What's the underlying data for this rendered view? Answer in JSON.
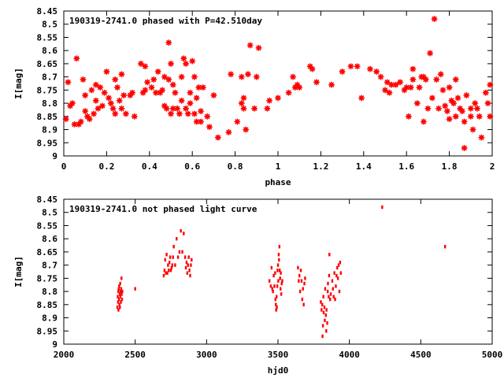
{
  "colors": {
    "points": "#ff0000",
    "axes": "#000000",
    "background": "#ffffff"
  },
  "chart_data": [
    {
      "type": "scatter",
      "title": "190319-2741.0 phased with P=42.510day",
      "xlabel": "phase",
      "ylabel": "I[mag]",
      "xlim": [
        0,
        2
      ],
      "ylim": [
        8.45,
        9.0
      ],
      "y_inverted": true,
      "grid": false,
      "marker": "asterisk",
      "xticks": [
        0,
        0.2,
        0.4,
        0.6,
        0.8,
        1,
        1.2,
        1.4,
        1.6,
        1.8,
        2
      ],
      "xtick_labels": [
        "0",
        "0.2",
        "0.4",
        "0.6",
        "0.8",
        "1",
        "1.2",
        "1.4",
        "1.6",
        "1.8",
        "2"
      ],
      "yticks": [
        8.45,
        8.5,
        8.55,
        8.6,
        8.65,
        8.7,
        8.75,
        8.8,
        8.85,
        8.9,
        8.95,
        9.0
      ],
      "ytick_labels": [
        "8.45",
        "8.5",
        "8.55",
        "8.6",
        "8.65",
        "8.7",
        "8.75",
        "8.8",
        "8.85",
        "8.9",
        "8.95",
        "9"
      ],
      "points": [
        [
          0.01,
          8.86
        ],
        [
          0.02,
          8.72
        ],
        [
          0.03,
          8.81
        ],
        [
          0.04,
          8.8
        ],
        [
          0.05,
          8.88
        ],
        [
          0.06,
          8.63
        ],
        [
          0.07,
          8.88
        ],
        [
          0.08,
          8.87
        ],
        [
          0.09,
          8.71
        ],
        [
          0.1,
          8.77
        ],
        [
          0.1,
          8.83
        ],
        [
          0.11,
          8.85
        ],
        [
          0.12,
          8.86
        ],
        [
          0.13,
          8.75
        ],
        [
          0.14,
          8.84
        ],
        [
          0.15,
          8.79
        ],
        [
          0.15,
          8.73
        ],
        [
          0.16,
          8.82
        ],
        [
          0.17,
          8.74
        ],
        [
          0.18,
          8.81
        ],
        [
          0.19,
          8.76
        ],
        [
          0.2,
          8.68
        ],
        [
          0.21,
          8.78
        ],
        [
          0.22,
          8.8
        ],
        [
          0.23,
          8.82
        ],
        [
          0.24,
          8.71
        ],
        [
          0.24,
          8.84
        ],
        [
          0.25,
          8.74
        ],
        [
          0.26,
          8.79
        ],
        [
          0.27,
          8.69
        ],
        [
          0.27,
          8.82
        ],
        [
          0.28,
          8.77
        ],
        [
          0.29,
          8.84
        ],
        [
          0.31,
          8.77
        ],
        [
          0.32,
          8.76
        ],
        [
          0.33,
          8.85
        ],
        [
          0.36,
          8.65
        ],
        [
          0.37,
          8.76
        ],
        [
          0.38,
          8.66
        ],
        [
          0.38,
          8.75
        ],
        [
          0.39,
          8.72
        ],
        [
          0.41,
          8.74
        ],
        [
          0.42,
          8.71
        ],
        [
          0.43,
          8.76
        ],
        [
          0.44,
          8.68
        ],
        [
          0.45,
          8.76
        ],
        [
          0.46,
          8.75
        ],
        [
          0.47,
          8.7
        ],
        [
          0.47,
          8.81
        ],
        [
          0.48,
          8.82
        ],
        [
          0.49,
          8.71
        ],
        [
          0.49,
          8.57
        ],
        [
          0.5,
          8.65
        ],
        [
          0.5,
          8.84
        ],
        [
          0.51,
          8.82
        ],
        [
          0.51,
          8.73
        ],
        [
          0.52,
          8.76
        ],
        [
          0.53,
          8.82
        ],
        [
          0.54,
          8.84
        ],
        [
          0.55,
          8.7
        ],
        [
          0.55,
          8.79
        ],
        [
          0.56,
          8.63
        ],
        [
          0.57,
          8.65
        ],
        [
          0.57,
          8.82
        ],
        [
          0.58,
          8.84
        ],
        [
          0.59,
          8.76
        ],
        [
          0.59,
          8.8
        ],
        [
          0.6,
          8.64
        ],
        [
          0.61,
          8.7
        ],
        [
          0.61,
          8.84
        ],
        [
          0.62,
          8.78
        ],
        [
          0.62,
          8.87
        ],
        [
          0.63,
          8.74
        ],
        [
          0.64,
          8.83
        ],
        [
          0.64,
          8.87
        ],
        [
          0.65,
          8.74
        ],
        [
          0.67,
          8.85
        ],
        [
          0.68,
          8.89
        ],
        [
          0.7,
          8.77
        ],
        [
          0.72,
          8.93
        ],
        [
          0.77,
          8.91
        ],
        [
          0.78,
          8.69
        ],
        [
          0.81,
          8.87
        ],
        [
          0.83,
          8.7
        ],
        [
          0.83,
          8.8
        ],
        [
          0.84,
          8.82
        ],
        [
          0.84,
          8.78
        ],
        [
          0.85,
          8.9
        ],
        [
          0.86,
          8.69
        ],
        [
          0.87,
          8.58
        ],
        [
          0.89,
          8.82
        ],
        [
          0.9,
          8.7
        ],
        [
          0.91,
          8.59
        ],
        [
          0.95,
          8.82
        ],
        [
          0.96,
          8.79
        ],
        [
          1.0,
          8.78
        ],
        [
          1.05,
          8.76
        ],
        [
          1.07,
          8.7
        ],
        [
          1.08,
          8.74
        ],
        [
          1.09,
          8.73
        ],
        [
          1.1,
          8.74
        ],
        [
          1.15,
          8.66
        ],
        [
          1.16,
          8.67
        ],
        [
          1.18,
          8.72
        ],
        [
          1.25,
          8.73
        ],
        [
          1.3,
          8.68
        ],
        [
          1.34,
          8.66
        ],
        [
          1.37,
          8.66
        ],
        [
          1.39,
          8.78
        ],
        [
          1.43,
          8.67
        ],
        [
          1.46,
          8.68
        ],
        [
          1.48,
          8.7
        ],
        [
          1.5,
          8.75
        ],
        [
          1.51,
          8.72
        ],
        [
          1.52,
          8.76
        ],
        [
          1.53,
          8.73
        ],
        [
          1.55,
          8.73
        ],
        [
          1.57,
          8.72
        ],
        [
          1.59,
          8.75
        ],
        [
          1.6,
          8.74
        ],
        [
          1.61,
          8.85
        ],
        [
          1.62,
          8.74
        ],
        [
          1.63,
          8.71
        ],
        [
          1.63,
          8.67
        ],
        [
          1.65,
          8.8
        ],
        [
          1.66,
          8.74
        ],
        [
          1.67,
          8.7
        ],
        [
          1.68,
          8.7
        ],
        [
          1.68,
          8.87
        ],
        [
          1.69,
          8.71
        ],
        [
          1.7,
          8.82
        ],
        [
          1.71,
          8.61
        ],
        [
          1.72,
          8.78
        ],
        [
          1.73,
          8.48
        ],
        [
          1.74,
          8.71
        ],
        [
          1.75,
          8.82
        ],
        [
          1.76,
          8.69
        ],
        [
          1.77,
          8.75
        ],
        [
          1.78,
          8.81
        ],
        [
          1.79,
          8.83
        ],
        [
          1.8,
          8.74
        ],
        [
          1.8,
          8.86
        ],
        [
          1.81,
          8.79
        ],
        [
          1.82,
          8.8
        ],
        [
          1.83,
          8.85
        ],
        [
          1.83,
          8.71
        ],
        [
          1.84,
          8.78
        ],
        [
          1.85,
          8.82
        ],
        [
          1.86,
          8.83
        ],
        [
          1.87,
          8.97
        ],
        [
          1.87,
          8.87
        ],
        [
          1.88,
          8.77
        ],
        [
          1.9,
          8.85
        ],
        [
          1.9,
          8.82
        ],
        [
          1.91,
          8.9
        ],
        [
          1.92,
          8.8
        ],
        [
          1.93,
          8.82
        ],
        [
          1.94,
          8.85
        ],
        [
          1.95,
          8.93
        ],
        [
          1.97,
          8.76
        ],
        [
          1.98,
          8.8
        ],
        [
          1.99,
          8.85
        ],
        [
          1.99,
          8.73
        ]
      ]
    },
    {
      "type": "scatter",
      "title": "190319-2741.0 not phased light curve",
      "xlabel": "hjd0",
      "ylabel": "I[mag]",
      "xlim": [
        2000,
        5000
      ],
      "ylim": [
        8.45,
        9.0
      ],
      "y_inverted": true,
      "grid": false,
      "marker": "dot",
      "xticks": [
        2000,
        2500,
        3000,
        3500,
        4000,
        4500,
        5000
      ],
      "xtick_labels": [
        "2000",
        "2500",
        "3000",
        "3500",
        "4000",
        "4500",
        "5000"
      ],
      "yticks": [
        8.45,
        8.5,
        8.55,
        8.6,
        8.65,
        8.7,
        8.75,
        8.8,
        8.85,
        8.9,
        8.95,
        9.0
      ],
      "ytick_labels": [
        "8.45",
        "8.5",
        "8.55",
        "8.6",
        "8.65",
        "8.7",
        "8.75",
        "8.8",
        "8.85",
        "8.9",
        "8.95",
        "9"
      ],
      "points": [
        [
          2375,
          8.86
        ],
        [
          2378,
          8.82
        ],
        [
          2380,
          8.84
        ],
        [
          2382,
          8.8
        ],
        [
          2383,
          8.87
        ],
        [
          2385,
          8.79
        ],
        [
          2387,
          8.83
        ],
        [
          2388,
          8.78
        ],
        [
          2390,
          8.85
        ],
        [
          2392,
          8.81
        ],
        [
          2393,
          8.86
        ],
        [
          2395,
          8.77
        ],
        [
          2396,
          8.82
        ],
        [
          2398,
          8.8
        ],
        [
          2400,
          8.84
        ],
        [
          2402,
          8.79
        ],
        [
          2404,
          8.75
        ],
        [
          2406,
          8.81
        ],
        [
          2408,
          8.83
        ],
        [
          2410,
          8.8
        ],
        [
          2500,
          8.79
        ],
        [
          2700,
          8.74
        ],
        [
          2705,
          8.72
        ],
        [
          2710,
          8.68
        ],
        [
          2715,
          8.73
        ],
        [
          2720,
          8.66
        ],
        [
          2725,
          8.73
        ],
        [
          2730,
          8.7
        ],
        [
          2735,
          8.72
        ],
        [
          2740,
          8.69
        ],
        [
          2745,
          8.67
        ],
        [
          2750,
          8.72
        ],
        [
          2755,
          8.71
        ],
        [
          2760,
          8.7
        ],
        [
          2765,
          8.67
        ],
        [
          2770,
          8.63
        ],
        [
          2780,
          8.7
        ],
        [
          2790,
          8.6
        ],
        [
          2800,
          8.67
        ],
        [
          2810,
          8.65
        ],
        [
          2820,
          8.57
        ],
        [
          2830,
          8.65
        ],
        [
          2840,
          8.58
        ],
        [
          2850,
          8.67
        ],
        [
          2855,
          8.71
        ],
        [
          2860,
          8.69
        ],
        [
          2865,
          8.73
        ],
        [
          2870,
          8.7
        ],
        [
          2875,
          8.67
        ],
        [
          2880,
          8.72
        ],
        [
          2885,
          8.74
        ],
        [
          2890,
          8.7
        ],
        [
          2895,
          8.68
        ],
        [
          3440,
          8.76
        ],
        [
          3450,
          8.78
        ],
        [
          3455,
          8.71
        ],
        [
          3460,
          8.79
        ],
        [
          3465,
          8.8
        ],
        [
          3470,
          8.74
        ],
        [
          3475,
          8.78
        ],
        [
          3480,
          8.73
        ],
        [
          3482,
          8.83
        ],
        [
          3485,
          8.85
        ],
        [
          3487,
          8.87
        ],
        [
          3490,
          8.82
        ],
        [
          3492,
          8.86
        ],
        [
          3495,
          8.78
        ],
        [
          3497,
          8.72
        ],
        [
          3500,
          8.7
        ],
        [
          3502,
          8.76
        ],
        [
          3505,
          8.66
        ],
        [
          3507,
          8.68
        ],
        [
          3510,
          8.63
        ],
        [
          3512,
          8.72
        ],
        [
          3515,
          8.75
        ],
        [
          3518,
          8.79
        ],
        [
          3520,
          8.73
        ],
        [
          3523,
          8.81
        ],
        [
          3526,
          8.77
        ],
        [
          3530,
          8.76
        ],
        [
          3640,
          8.71
        ],
        [
          3645,
          8.76
        ],
        [
          3650,
          8.74
        ],
        [
          3655,
          8.8
        ],
        [
          3660,
          8.72
        ],
        [
          3665,
          8.76
        ],
        [
          3670,
          8.83
        ],
        [
          3675,
          8.79
        ],
        [
          3680,
          8.85
        ],
        [
          3685,
          8.77
        ],
        [
          3690,
          8.75
        ],
        [
          3800,
          8.84
        ],
        [
          3805,
          8.87
        ],
        [
          3810,
          8.85
        ],
        [
          3812,
          8.97
        ],
        [
          3815,
          8.93
        ],
        [
          3818,
          8.82
        ],
        [
          3820,
          8.88
        ],
        [
          3825,
          8.86
        ],
        [
          3828,
          8.91
        ],
        [
          3830,
          8.79
        ],
        [
          3835,
          8.89
        ],
        [
          3838,
          8.95
        ],
        [
          3840,
          8.87
        ],
        [
          3845,
          8.92
        ],
        [
          3848,
          8.8
        ],
        [
          3850,
          8.77
        ],
        [
          3855,
          8.82
        ],
        [
          3858,
          8.74
        ],
        [
          3860,
          8.66
        ],
        [
          3865,
          8.83
        ],
        [
          3870,
          8.81
        ],
        [
          3880,
          8.76
        ],
        [
          3885,
          8.79
        ],
        [
          3890,
          8.82
        ],
        [
          3895,
          8.73
        ],
        [
          3900,
          8.83
        ],
        [
          3905,
          8.78
        ],
        [
          3910,
          8.74
        ],
        [
          3915,
          8.71
        ],
        [
          3920,
          8.75
        ],
        [
          3925,
          8.7
        ],
        [
          3930,
          8.8
        ],
        [
          3935,
          8.69
        ],
        [
          3940,
          8.73
        ],
        [
          4230,
          8.48
        ],
        [
          4670,
          8.63
        ]
      ]
    }
  ]
}
